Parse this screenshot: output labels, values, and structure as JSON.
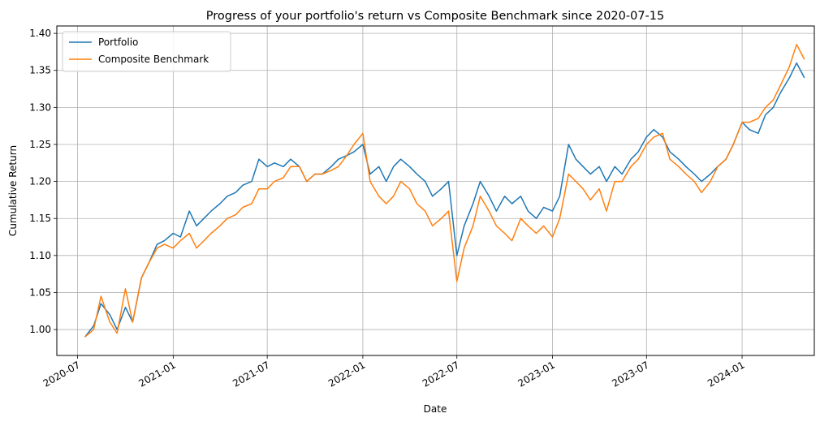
{
  "chart_data": {
    "type": "line",
    "title": "Progress of your portfolio's return vs Composite Benchmark since 2020-07-15",
    "xlabel": "Date",
    "ylabel": "Cumulative Return",
    "x_tick_labels": [
      "2020-07",
      "2021-01",
      "2021-07",
      "2022-01",
      "2022-07",
      "2023-01",
      "2023-07",
      "2024-01"
    ],
    "x_tick_dates": [
      "2020-07-01",
      "2021-01-01",
      "2021-07-01",
      "2022-01-01",
      "2022-07-01",
      "2023-01-01",
      "2023-07-01",
      "2024-01-01"
    ],
    "xlim": [
      "2020-05-22",
      "2024-05-19"
    ],
    "y_ticks": [
      1.0,
      1.05,
      1.1,
      1.15,
      1.2,
      1.25,
      1.3,
      1.35,
      1.4
    ],
    "y_tick_labels": [
      "1.00",
      "1.05",
      "1.10",
      "1.15",
      "1.20",
      "1.25",
      "1.30",
      "1.35",
      "1.40"
    ],
    "ylim": [
      0.965,
      1.41
    ],
    "grid": true,
    "legend_position": "top-left",
    "x": [
      "2020-07-15",
      "2020-08-01",
      "2020-08-15",
      "2020-09-01",
      "2020-09-15",
      "2020-10-01",
      "2020-10-15",
      "2020-11-01",
      "2020-11-15",
      "2020-12-01",
      "2020-12-15",
      "2021-01-01",
      "2021-01-15",
      "2021-02-01",
      "2021-02-15",
      "2021-03-01",
      "2021-03-15",
      "2021-04-01",
      "2021-04-15",
      "2021-05-01",
      "2021-05-15",
      "2021-06-01",
      "2021-06-15",
      "2021-07-01",
      "2021-07-15",
      "2021-08-01",
      "2021-08-15",
      "2021-09-01",
      "2021-09-15",
      "2021-10-01",
      "2021-10-15",
      "2021-11-01",
      "2021-11-15",
      "2021-12-01",
      "2021-12-15",
      "2022-01-01",
      "2022-01-15",
      "2022-02-01",
      "2022-02-15",
      "2022-03-01",
      "2022-03-15",
      "2022-04-01",
      "2022-04-15",
      "2022-05-01",
      "2022-05-15",
      "2022-06-01",
      "2022-06-15",
      "2022-07-01",
      "2022-07-15",
      "2022-08-01",
      "2022-08-15",
      "2022-09-01",
      "2022-09-15",
      "2022-10-01",
      "2022-10-15",
      "2022-11-01",
      "2022-11-15",
      "2022-12-01",
      "2022-12-15",
      "2023-01-01",
      "2023-01-15",
      "2023-02-01",
      "2023-02-15",
      "2023-03-01",
      "2023-03-15",
      "2023-04-01",
      "2023-04-15",
      "2023-05-01",
      "2023-05-15",
      "2023-06-01",
      "2023-06-15",
      "2023-07-01",
      "2023-07-15",
      "2023-08-01",
      "2023-08-15",
      "2023-09-01",
      "2023-09-15",
      "2023-10-01",
      "2023-10-15",
      "2023-11-01",
      "2023-11-15",
      "2023-12-01",
      "2023-12-15",
      "2024-01-01",
      "2024-01-15",
      "2024-02-01",
      "2024-02-15",
      "2024-03-01",
      "2024-03-15",
      "2024-04-01",
      "2024-04-15",
      "2024-04-30"
    ],
    "series": [
      {
        "name": "Portfolio",
        "color": "#1f77b4",
        "values": [
          0.99,
          1.005,
          1.035,
          1.02,
          1.0,
          1.03,
          1.01,
          1.07,
          1.09,
          1.115,
          1.12,
          1.13,
          1.125,
          1.16,
          1.14,
          1.15,
          1.16,
          1.17,
          1.18,
          1.185,
          1.195,
          1.2,
          1.23,
          1.22,
          1.225,
          1.22,
          1.23,
          1.22,
          1.2,
          1.21,
          1.21,
          1.22,
          1.23,
          1.235,
          1.24,
          1.25,
          1.21,
          1.22,
          1.2,
          1.22,
          1.23,
          1.22,
          1.21,
          1.2,
          1.18,
          1.19,
          1.2,
          1.1,
          1.14,
          1.17,
          1.2,
          1.18,
          1.16,
          1.18,
          1.17,
          1.18,
          1.16,
          1.15,
          1.165,
          1.16,
          1.18,
          1.25,
          1.23,
          1.22,
          1.21,
          1.22,
          1.2,
          1.22,
          1.21,
          1.23,
          1.24,
          1.26,
          1.27,
          1.26,
          1.24,
          1.23,
          1.22,
          1.21,
          1.2,
          1.21,
          1.22,
          1.23,
          1.25,
          1.28,
          1.27,
          1.265,
          1.29,
          1.3,
          1.32,
          1.34,
          1.36,
          1.34
        ]
      },
      {
        "name": "Composite Benchmark",
        "color": "#ff7f0e",
        "values": [
          0.99,
          1.0,
          1.045,
          1.01,
          0.995,
          1.055,
          1.01,
          1.07,
          1.09,
          1.11,
          1.115,
          1.11,
          1.12,
          1.13,
          1.11,
          1.12,
          1.13,
          1.14,
          1.15,
          1.155,
          1.165,
          1.17,
          1.19,
          1.19,
          1.2,
          1.205,
          1.22,
          1.22,
          1.2,
          1.21,
          1.21,
          1.215,
          1.22,
          1.235,
          1.25,
          1.265,
          1.2,
          1.18,
          1.17,
          1.18,
          1.2,
          1.19,
          1.17,
          1.16,
          1.14,
          1.15,
          1.16,
          1.065,
          1.11,
          1.14,
          1.18,
          1.16,
          1.14,
          1.13,
          1.12,
          1.15,
          1.14,
          1.13,
          1.14,
          1.125,
          1.15,
          1.21,
          1.2,
          1.19,
          1.175,
          1.19,
          1.16,
          1.2,
          1.2,
          1.22,
          1.23,
          1.25,
          1.26,
          1.265,
          1.23,
          1.22,
          1.21,
          1.2,
          1.185,
          1.2,
          1.22,
          1.23,
          1.25,
          1.28,
          1.28,
          1.285,
          1.3,
          1.31,
          1.33,
          1.355,
          1.385,
          1.365
        ]
      }
    ]
  }
}
